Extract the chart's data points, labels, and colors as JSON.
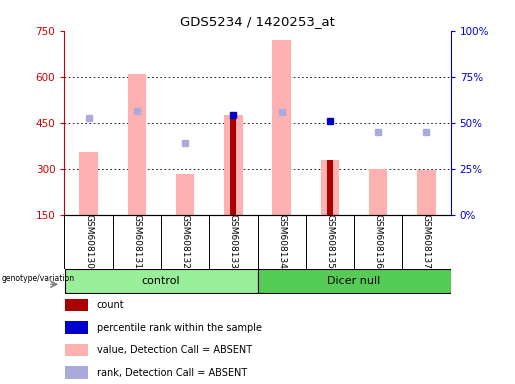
{
  "title": "GDS5234 / 1420253_at",
  "samples": [
    "GSM608130",
    "GSM608131",
    "GSM608132",
    "GSM608133",
    "GSM608134",
    "GSM608135",
    "GSM608136",
    "GSM608137"
  ],
  "groups": [
    "control",
    "control",
    "control",
    "control",
    "Dicer null",
    "Dicer null",
    "Dicer null",
    "Dicer null"
  ],
  "group_labels": [
    "control",
    "Dicer null"
  ],
  "ylim_left": [
    150,
    750
  ],
  "ylim_right": [
    0,
    100
  ],
  "yticks_left": [
    150,
    300,
    450,
    600,
    750
  ],
  "yticks_right": [
    0,
    25,
    50,
    75,
    100
  ],
  "bar_pink_values": [
    355,
    610,
    285,
    475,
    720,
    330,
    300,
    295
  ],
  "bar_red_values": [
    null,
    null,
    null,
    480,
    null,
    330,
    null,
    null
  ],
  "dot_dark_blue_values": [
    null,
    null,
    null,
    475,
    null,
    455,
    null,
    null
  ],
  "dot_light_blue_values": [
    465,
    490,
    385,
    null,
    485,
    null,
    420,
    420
  ],
  "background_color": "#ffffff",
  "plot_bg_color": "#ffffff",
  "bar_pink_color": "#ffb0b0",
  "bar_red_color": "#aa0000",
  "dot_dark_blue_color": "#0000cc",
  "dot_light_blue_color": "#aaaadd",
  "group_control_color": "#99ee99",
  "group_dicer_color": "#55cc55",
  "grid_color": "#000000",
  "left_axis_color": "#cc0000",
  "right_axis_color": "#0000cc",
  "legend_items": [
    {
      "color": "#aa0000",
      "label": "count"
    },
    {
      "color": "#0000cc",
      "label": "percentile rank within the sample"
    },
    {
      "color": "#ffb0b0",
      "label": "value, Detection Call = ABSENT"
    },
    {
      "color": "#aaaadd",
      "label": "rank, Detection Call = ABSENT"
    }
  ]
}
